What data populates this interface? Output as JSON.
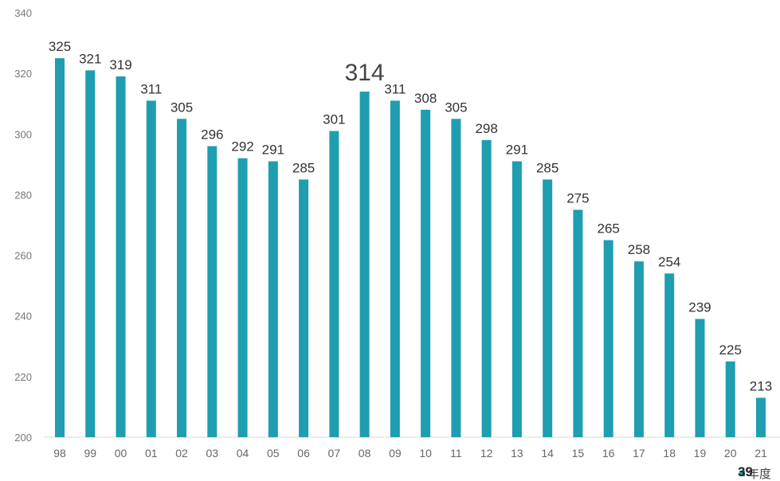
{
  "chart_data": {
    "type": "bar",
    "categories": [
      "98",
      "99",
      "00",
      "01",
      "02",
      "03",
      "04",
      "05",
      "06",
      "07",
      "08",
      "09",
      "10",
      "11",
      "12",
      "13",
      "14",
      "15",
      "16",
      "17",
      "18",
      "19",
      "20",
      "21"
    ],
    "values": [
      325,
      321,
      319,
      311,
      305,
      296,
      292,
      291,
      285,
      301,
      314,
      311,
      308,
      305,
      298,
      291,
      285,
      275,
      265,
      258,
      254,
      239,
      225,
      213
    ],
    "highlight_category": "08",
    "ylim": [
      200,
      340
    ],
    "yticks": [
      200,
      220,
      240,
      260,
      280,
      300,
      320,
      340
    ],
    "xlabel": "年度",
    "grid": false,
    "legend": "none",
    "bar_color": "#1e9eb0"
  },
  "page_number": "39"
}
